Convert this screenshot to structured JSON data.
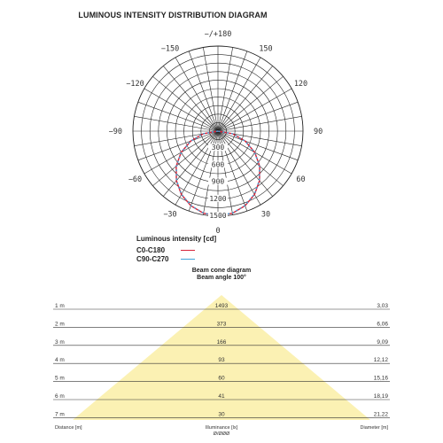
{
  "title": "LUMINOUS INTENSITY DISTRIBUTION DIAGRAM",
  "polar": {
    "angle_labels": [
      {
        "text": "−/+180",
        "deg": 180
      },
      {
        "text": "−150",
        "deg": -150
      },
      {
        "text": "150",
        "deg": 150
      },
      {
        "text": "−120",
        "deg": -120
      },
      {
        "text": "120",
        "deg": 120
      },
      {
        "text": "−90",
        "deg": -90
      },
      {
        "text": "90",
        "deg": 90
      },
      {
        "text": "−60",
        "deg": -60
      },
      {
        "text": "60",
        "deg": 60
      },
      {
        "text": "−30",
        "deg": -30
      },
      {
        "text": "30",
        "deg": 30
      },
      {
        "text": "0",
        "deg": 0
      }
    ],
    "scale_labels": [
      "300",
      "600",
      "900",
      "1200",
      "1500"
    ],
    "max_scale": 1500,
    "rings": 10,
    "spoke_step_deg": 10
  },
  "chart_data": {
    "type": "polar",
    "title": "LUMINOUS INTENSITY DISTRIBUTION DIAGRAM",
    "unit": "cd",
    "series": [
      {
        "name": "C0-C180",
        "color": "#d6243a",
        "angles": [
          0,
          10,
          20,
          30,
          40,
          50,
          60,
          70,
          80,
          90
        ],
        "values": [
          1493,
          1470,
          1400,
          1290,
          1140,
          960,
          750,
          510,
          260,
          0
        ]
      },
      {
        "name": "C90-C270",
        "color": "#3fa4dc",
        "angles": [
          0,
          10,
          20,
          30,
          40,
          50,
          60,
          70,
          80,
          90
        ],
        "values": [
          1493,
          1468,
          1395,
          1285,
          1135,
          955,
          745,
          505,
          255,
          0
        ]
      }
    ]
  },
  "legend": {
    "heading": "Luminous intensity [cd]",
    "items": [
      {
        "name": "C0-C180",
        "color": "#d6243a"
      },
      {
        "name": "C90-C270",
        "color": "#3fa4dc"
      }
    ]
  },
  "beam": {
    "heading": "Beam cone diagram",
    "angle_text": "Beam angle 100°",
    "cone_color": "#fbf1b3",
    "rows": [
      {
        "distance": "1 m",
        "illuminance": "1493",
        "diameter": "3,03"
      },
      {
        "distance": "2 m",
        "illuminance": "373",
        "diameter": "6,06"
      },
      {
        "distance": "3 m",
        "illuminance": "166",
        "diameter": "9,09"
      },
      {
        "distance": "4 m",
        "illuminance": "93",
        "diameter": "12,12"
      },
      {
        "distance": "5 m",
        "illuminance": "60",
        "diameter": "15,16"
      },
      {
        "distance": "6 m",
        "illuminance": "41",
        "diameter": "18,19"
      },
      {
        "distance": "7 m",
        "illuminance": "30",
        "diameter": "21,22"
      }
    ],
    "footer": {
      "distance": "Distance [m]",
      "illuminance": "Illuminance [lx]",
      "illuminance_sub": "Ø/ØØØ",
      "diameter": "Diameter [m]"
    }
  }
}
